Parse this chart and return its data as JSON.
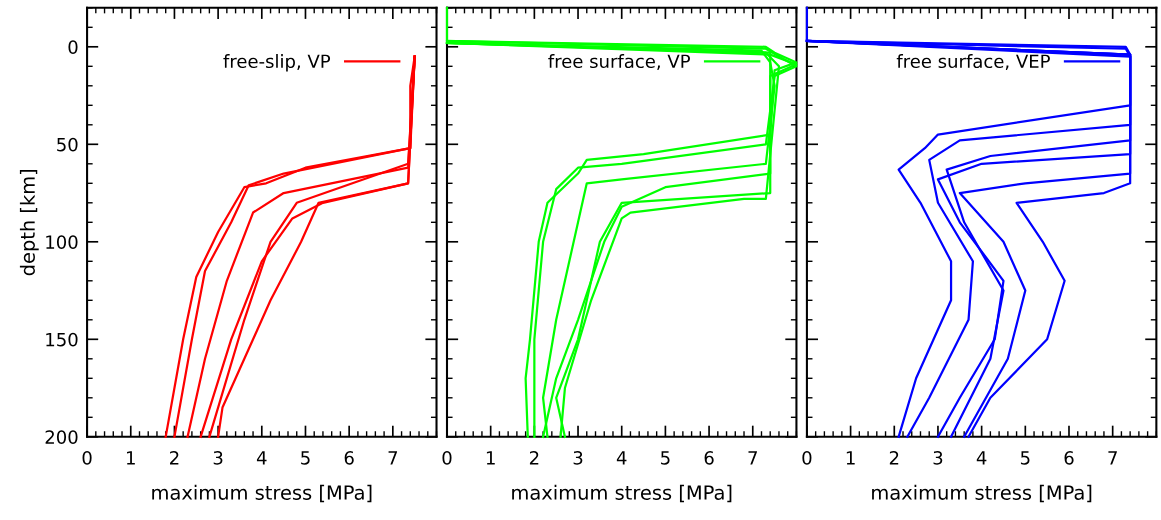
{
  "chart_data": [
    {
      "type": "line",
      "xlabel": "maximum stress [MPa]",
      "ylabel": "depth [km]",
      "xlim": [
        0,
        8
      ],
      "ylim": [
        200,
        -20
      ],
      "xticks": [
        0,
        1,
        2,
        3,
        4,
        5,
        6,
        7
      ],
      "yticks": [
        0,
        50,
        100,
        150,
        200
      ],
      "legend": "top right",
      "grid": false,
      "series": [
        {
          "name": "free-slip, VP",
          "color": "#ff0000",
          "x": [
            7.5,
            7.4,
            7.4,
            5,
            4.1,
            3.6,
            3.0,
            2.5,
            2.2,
            1.8
          ],
          "values": [
            5,
            20,
            52,
            62,
            70,
            72,
            95,
            118,
            150,
            200
          ]
        },
        {
          "color": "#ff0000",
          "x": [
            7.5,
            7.4,
            4.5,
            3.7,
            3.3,
            2.7,
            2.4,
            2.0
          ],
          "values": [
            5,
            52,
            65,
            71,
            90,
            115,
            150,
            200
          ]
        },
        {
          "color": "#ff0000",
          "x": [
            7.5,
            7.35,
            4.5,
            3.8,
            3.2,
            2.7,
            2.3
          ],
          "values": [
            5,
            62,
            75,
            85,
            120,
            160,
            200
          ]
        },
        {
          "color": "#ff0000",
          "x": [
            7.5,
            7.35,
            5.4,
            4.7,
            4.0,
            3.3,
            2.6
          ],
          "values": [
            5,
            70,
            80,
            88,
            110,
            150,
            200
          ]
        },
        {
          "color": "#ff0000",
          "x": [
            7.5,
            7.35,
            5.3,
            4.9,
            4.2,
            3.1,
            3.0
          ],
          "values": [
            5,
            70,
            80,
            100,
            130,
            185,
            200
          ]
        },
        {
          "color": "#ff0000",
          "x": [
            7.5,
            7.35,
            4.8,
            4.2,
            3.6,
            2.8
          ],
          "values": [
            5,
            60,
            80,
            100,
            140,
            200
          ]
        }
      ]
    },
    {
      "type": "line",
      "xlabel": "maximum stress [MPa]",
      "xlim": [
        0,
        8
      ],
      "ylim": [
        200,
        -20
      ],
      "xticks": [
        0,
        1,
        2,
        3,
        4,
        5,
        6,
        7
      ],
      "yticks": [
        0,
        50,
        100,
        150,
        200
      ],
      "tick_labels": "x",
      "legend": "top right",
      "grid": false,
      "series": [
        {
          "name": "free surface, VP",
          "color": "#00ff00",
          "x": [
            0,
            0,
            7.3,
            7.5,
            8,
            7.5,
            7.4,
            4.5,
            3.2,
            3.0,
            2.3,
            2.1,
            1.9,
            1.8,
            1.85
          ],
          "values": [
            -20,
            -3,
            0,
            3,
            8,
            12,
            45,
            55,
            58,
            65,
            80,
            100,
            150,
            170,
            200
          ]
        },
        {
          "color": "#00ff00",
          "x": [
            0,
            7.3,
            7.6,
            8,
            7.5,
            7.3,
            4,
            3,
            2.5,
            2.2,
            2.0,
            2.0
          ],
          "values": [
            -3,
            1,
            5,
            10,
            15,
            50,
            60,
            62,
            73,
            100,
            150,
            200
          ]
        },
        {
          "color": "#00ff00",
          "x": [
            0,
            7.2,
            7.4,
            7.5,
            7.3,
            4.0,
            3.2,
            3.0,
            2.5,
            2.2,
            2.3
          ],
          "values": [
            -2,
            2,
            8,
            20,
            60,
            68,
            70,
            90,
            140,
            180,
            200
          ]
        },
        {
          "color": "#00ff00",
          "x": [
            0,
            7.4,
            8,
            7.4,
            7.4,
            4,
            3.5,
            3.0,
            2.5,
            2.7
          ],
          "values": [
            -2,
            4,
            9,
            15,
            75,
            80,
            100,
            150,
            180,
            200
          ]
        },
        {
          "color": "#00ff00",
          "x": [
            0,
            7.3,
            7.6,
            7.3,
            6.8,
            4.2,
            4.0,
            3.8,
            3.3,
            2.7,
            2.6
          ],
          "values": [
            -2,
            3,
            10,
            78,
            78,
            85,
            88,
            100,
            130,
            175,
            200
          ]
        },
        {
          "color": "#00ff00",
          "x": [
            0,
            7.4,
            7.4,
            5,
            4,
            3.6,
            3.0,
            2.5,
            2.2
          ],
          "values": [
            -2,
            3,
            65,
            72,
            82,
            100,
            140,
            170,
            200
          ]
        }
      ]
    },
    {
      "type": "line",
      "xlabel": "maximum stress [MPa]",
      "xlim": [
        0,
        8
      ],
      "ylim": [
        200,
        -20
      ],
      "xticks": [
        0,
        1,
        2,
        3,
        4,
        5,
        6,
        7
      ],
      "yticks": [
        0,
        50,
        100,
        150,
        200
      ],
      "tick_labels": "x",
      "legend": "top right",
      "grid": false,
      "series": [
        {
          "name": "free surface, VEP",
          "color": "#0000ff",
          "x": [
            0,
            0,
            7.3,
            7.4,
            7.4,
            3,
            2.7,
            2.1,
            2.6,
            3.3,
            3.3,
            2.5,
            2.1
          ],
          "values": [
            -20,
            -3,
            0,
            4,
            30,
            45,
            52,
            63,
            80,
            110,
            130,
            170,
            200
          ]
        },
        {
          "color": "#0000ff",
          "x": [
            0,
            7.3,
            7.4,
            7.4,
            3.5,
            2.8,
            3.0,
            3.8,
            3.7,
            2.8,
            2.3
          ],
          "values": [
            -3,
            1,
            5,
            40,
            48,
            58,
            80,
            110,
            140,
            180,
            200
          ]
        },
        {
          "color": "#0000ff",
          "x": [
            0,
            7.4,
            7.4,
            4,
            3,
            3.5,
            4.5,
            4.3,
            3.5,
            3.0
          ],
          "values": [
            -3,
            4,
            55,
            60,
            68,
            90,
            120,
            150,
            180,
            200
          ]
        },
        {
          "color": "#0000ff",
          "x": [
            0,
            7.4,
            7.4,
            5,
            3.5,
            4.5,
            5.0,
            4.6,
            3.6
          ],
          "values": [
            -3,
            4,
            65,
            70,
            75,
            100,
            125,
            160,
            200
          ]
        },
        {
          "color": "#0000ff",
          "x": [
            0,
            7.4,
            7.4,
            6.8,
            4.8,
            5.4,
            5.9,
            5.5,
            4.2,
            3.7
          ],
          "values": [
            -3,
            4,
            70,
            75,
            80,
            100,
            120,
            150,
            180,
            200
          ]
        },
        {
          "color": "#0000ff",
          "x": [
            0,
            7.4,
            7.4,
            4.2,
            3.2,
            3.6,
            4.5,
            4.2,
            3.3
          ],
          "values": [
            -3,
            5,
            48,
            56,
            63,
            90,
            125,
            160,
            200
          ]
        }
      ]
    }
  ]
}
